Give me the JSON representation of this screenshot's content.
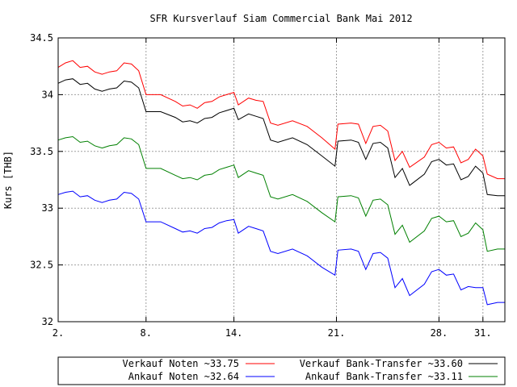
{
  "chart_data": {
    "type": "line",
    "title": "SFR Kursverlauf Siam Commercial Bank Mai 2012",
    "xlabel": "",
    "ylabel": "Kurs [THB]",
    "x_range": [
      2,
      32.5
    ],
    "ylim": [
      32,
      34.5
    ],
    "x_ticks": [
      {
        "value": 2,
        "label": "2."
      },
      {
        "value": 8,
        "label": "8."
      },
      {
        "value": 14,
        "label": "14."
      },
      {
        "value": 21,
        "label": "21."
      },
      {
        "value": 28,
        "label": "28."
      },
      {
        "value": 31,
        "label": "31."
      }
    ],
    "y_ticks": [
      {
        "value": 32,
        "label": "32"
      },
      {
        "value": 32.5,
        "label": "32.5"
      },
      {
        "value": 33,
        "label": "33"
      },
      {
        "value": 33.5,
        "label": "33.5"
      },
      {
        "value": 34,
        "label": "34"
      },
      {
        "value": 34.5,
        "label": "34.5"
      }
    ],
    "grid": true,
    "legend_position": "bottom",
    "series": [
      {
        "name": "Verkauf Noten ~33.75",
        "color": "#ff0000",
        "x": [
          2,
          2.5,
          3,
          3.5,
          4,
          4.5,
          5,
          5.5,
          6,
          6.5,
          7,
          7.5,
          8,
          9,
          10,
          10.5,
          11,
          11.5,
          12,
          12.5,
          13,
          13.5,
          14,
          14.3,
          15,
          15.5,
          16,
          16.5,
          17,
          18,
          19,
          20,
          20.9,
          21.1,
          22,
          22.5,
          23,
          23.5,
          24,
          24.5,
          25,
          25.5,
          26,
          27,
          27.5,
          28,
          28.5,
          29,
          29.5,
          30,
          30.5,
          31,
          31.3,
          32,
          32.5
        ],
        "y": [
          34.24,
          34.28,
          34.3,
          34.24,
          34.25,
          34.2,
          34.18,
          34.2,
          34.21,
          34.28,
          34.27,
          34.21,
          34.0,
          34.0,
          33.94,
          33.9,
          33.91,
          33.88,
          33.93,
          33.94,
          33.98,
          34.0,
          34.02,
          33.91,
          33.97,
          33.95,
          33.94,
          33.75,
          33.73,
          33.77,
          33.72,
          33.62,
          33.52,
          33.74,
          33.75,
          33.74,
          33.57,
          33.72,
          33.73,
          33.68,
          33.42,
          33.5,
          33.36,
          33.45,
          33.56,
          33.58,
          33.53,
          33.54,
          33.4,
          33.43,
          33.52,
          33.46,
          33.3,
          33.26,
          33.26
        ]
      },
      {
        "name": "Verkauf Bank-Transfer ~33.60",
        "color": "#000000",
        "x": [
          2,
          2.5,
          3,
          3.5,
          4,
          4.5,
          5,
          5.5,
          6,
          6.5,
          7,
          7.5,
          8,
          9,
          10,
          10.5,
          11,
          11.5,
          12,
          12.5,
          13,
          13.5,
          14,
          14.3,
          15,
          15.5,
          16,
          16.5,
          17,
          18,
          19,
          20,
          20.9,
          21.1,
          22,
          22.5,
          23,
          23.5,
          24,
          24.5,
          25,
          25.5,
          26,
          27,
          27.5,
          28,
          28.5,
          29,
          29.5,
          30,
          30.5,
          31,
          31.3,
          32,
          32.5
        ],
        "y": [
          34.1,
          34.13,
          34.14,
          34.09,
          34.1,
          34.05,
          34.03,
          34.05,
          34.06,
          34.12,
          34.11,
          34.06,
          33.85,
          33.85,
          33.8,
          33.76,
          33.77,
          33.75,
          33.79,
          33.8,
          33.84,
          33.86,
          33.88,
          33.78,
          33.83,
          33.81,
          33.79,
          33.6,
          33.58,
          33.62,
          33.56,
          33.46,
          33.37,
          33.59,
          33.6,
          33.58,
          33.43,
          33.57,
          33.58,
          33.53,
          33.27,
          33.35,
          33.2,
          33.3,
          33.41,
          33.43,
          33.38,
          33.39,
          33.25,
          33.28,
          33.37,
          33.31,
          33.12,
          33.11,
          33.11
        ]
      },
      {
        "name": "Ankauf Bank-Transfer ~33.11",
        "color": "#008000",
        "x": [
          2,
          2.5,
          3,
          3.5,
          4,
          4.5,
          5,
          5.5,
          6,
          6.5,
          7,
          7.5,
          8,
          9,
          10,
          10.5,
          11,
          11.5,
          12,
          12.5,
          13,
          13.5,
          14,
          14.3,
          15,
          15.5,
          16,
          16.5,
          17,
          18,
          19,
          20,
          20.9,
          21.1,
          22,
          22.5,
          23,
          23.5,
          24,
          24.5,
          25,
          25.5,
          26,
          27,
          27.5,
          28,
          28.5,
          29,
          29.5,
          30,
          30.5,
          31,
          31.3,
          32,
          32.5
        ],
        "y": [
          33.6,
          33.62,
          33.63,
          33.58,
          33.59,
          33.55,
          33.53,
          33.55,
          33.56,
          33.62,
          33.61,
          33.56,
          33.35,
          33.35,
          33.29,
          33.26,
          33.27,
          33.25,
          33.29,
          33.3,
          33.34,
          33.36,
          33.38,
          33.27,
          33.33,
          33.31,
          33.29,
          33.1,
          33.08,
          33.12,
          33.06,
          32.96,
          32.88,
          33.1,
          33.11,
          33.09,
          32.93,
          33.07,
          33.08,
          33.03,
          32.77,
          32.85,
          32.7,
          32.8,
          32.91,
          32.93,
          32.88,
          32.89,
          32.75,
          32.78,
          32.87,
          32.81,
          32.62,
          32.64,
          32.64
        ]
      },
      {
        "name": "Ankauf Noten ~32.64",
        "color": "#0000ff",
        "x": [
          2,
          2.5,
          3,
          3.5,
          4,
          4.5,
          5,
          5.5,
          6,
          6.5,
          7,
          7.5,
          8,
          9,
          10,
          10.5,
          11,
          11.5,
          12,
          12.5,
          13,
          13.5,
          14,
          14.3,
          15,
          15.5,
          16,
          16.5,
          17,
          18,
          19,
          20,
          20.9,
          21.1,
          22,
          22.5,
          23,
          23.5,
          24,
          24.5,
          25,
          25.5,
          26,
          27,
          27.5,
          28,
          28.5,
          29,
          29.5,
          30,
          30.5,
          31,
          31.3,
          32,
          32.5
        ],
        "y": [
          33.12,
          33.14,
          33.15,
          33.1,
          33.11,
          33.07,
          33.05,
          33.07,
          33.08,
          33.14,
          33.13,
          33.08,
          32.88,
          32.88,
          32.82,
          32.79,
          32.8,
          32.78,
          32.82,
          32.83,
          32.87,
          32.89,
          32.9,
          32.78,
          32.84,
          32.82,
          32.8,
          32.62,
          32.6,
          32.64,
          32.58,
          32.48,
          32.41,
          32.63,
          32.64,
          32.62,
          32.46,
          32.6,
          32.61,
          32.56,
          32.3,
          32.38,
          32.23,
          32.33,
          32.44,
          32.46,
          32.41,
          32.42,
          32.28,
          32.31,
          32.3,
          32.3,
          32.15,
          32.17,
          32.17
        ]
      }
    ],
    "legend": [
      {
        "label": "Verkauf Noten ~33.75",
        "color": "#ff0000"
      },
      {
        "label": "Verkauf Bank-Transfer ~33.60",
        "color": "#000000"
      },
      {
        "label": "Ankauf Noten ~32.64",
        "color": "#0000ff"
      },
      {
        "label": "Ankauf Bank-Transfer ~33.11",
        "color": "#008000"
      }
    ]
  }
}
